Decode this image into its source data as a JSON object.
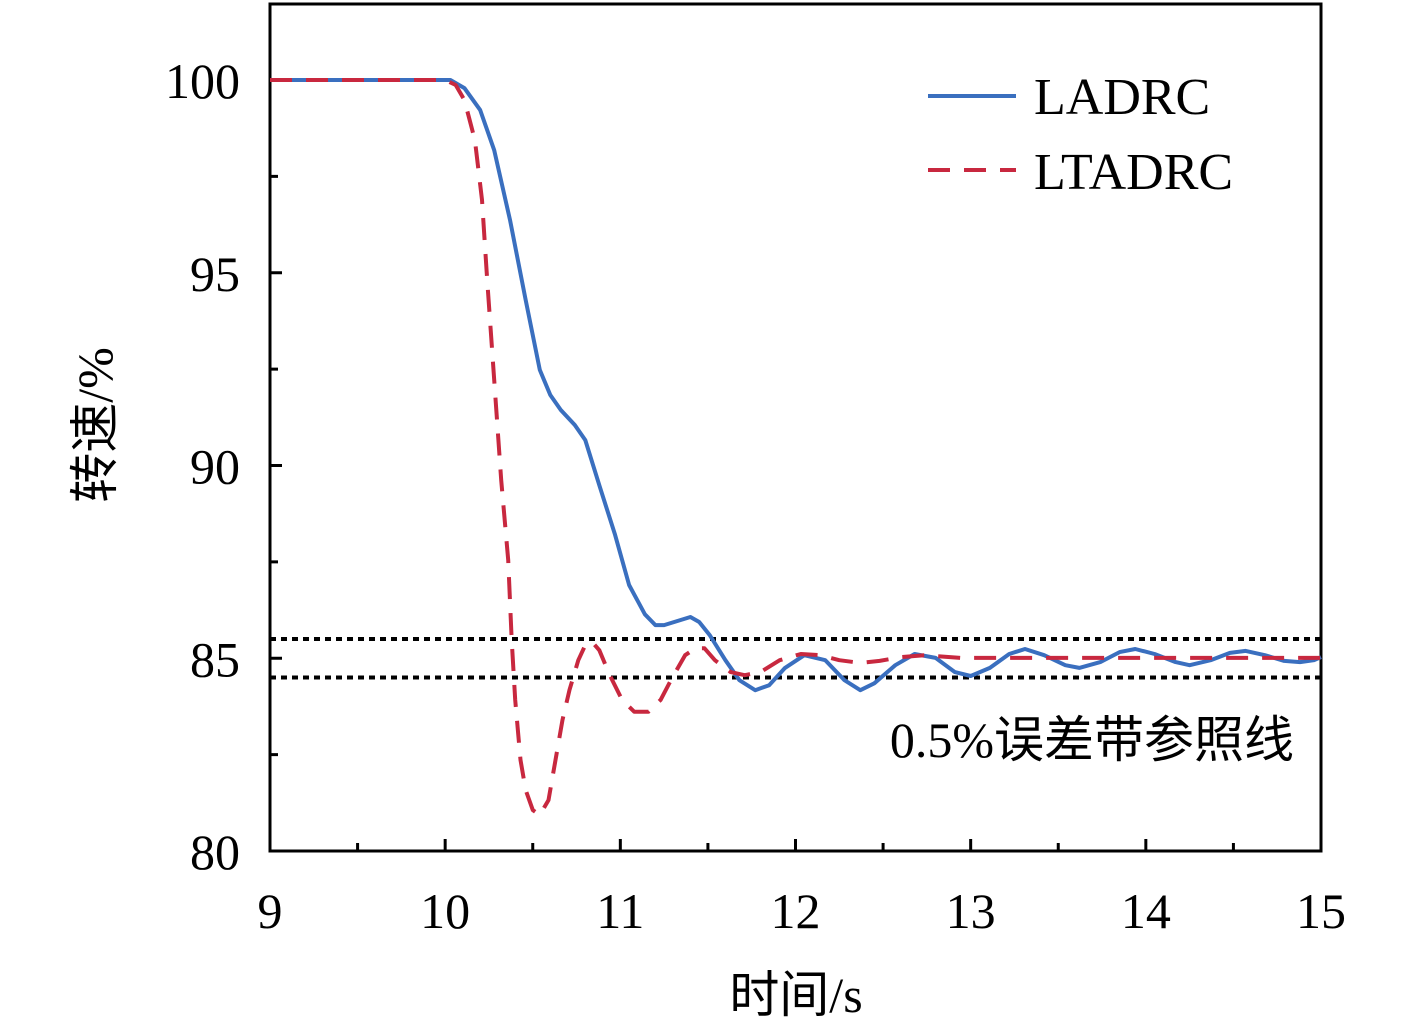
{
  "chart_data": {
    "type": "line",
    "title": "",
    "xlabel": "时间/s",
    "ylabel": "转速/%",
    "xlim": [
      9,
      15
    ],
    "ylim": [
      80,
      102
    ],
    "xticks": [
      9,
      10,
      11,
      12,
      13,
      14,
      15
    ],
    "yticks": [
      80,
      85,
      90,
      95,
      100
    ],
    "x_tick_labels": [
      "9",
      "10",
      "11",
      "12",
      "13",
      "14",
      "15"
    ],
    "y_tick_labels": [
      "80",
      "85",
      "90",
      "95",
      "100"
    ],
    "grid": false,
    "legend_position": "top-right",
    "series": [
      {
        "name": "LADRC",
        "color": "#3a6fbf",
        "style": "solid",
        "x": [
          9.0,
          10.03,
          10.11,
          10.2,
          10.28,
          10.37,
          10.46,
          10.54,
          10.6,
          10.66,
          10.74,
          10.8,
          10.88,
          10.97,
          11.05,
          11.14,
          11.2,
          11.25,
          11.4,
          11.45,
          11.51,
          11.6,
          11.68,
          11.77,
          11.85,
          11.94,
          12.05,
          12.17,
          12.28,
          12.37,
          12.45,
          12.57,
          12.68,
          12.8,
          12.91,
          13.0,
          13.11,
          13.22,
          13.31,
          13.42,
          13.54,
          13.62,
          13.74,
          13.85,
          13.94,
          14.05,
          14.17,
          14.25,
          14.37,
          14.48,
          14.57,
          14.68,
          14.79,
          14.88,
          14.96,
          15.0
        ],
        "y": [
          100,
          100,
          99.79,
          99.22,
          98.18,
          96.37,
          94.29,
          92.48,
          91.83,
          91.44,
          91.05,
          90.66,
          89.49,
          88.2,
          86.9,
          86.14,
          85.86,
          85.86,
          86.07,
          85.94,
          85.6,
          84.95,
          84.43,
          84.17,
          84.3,
          84.75,
          85.08,
          84.95,
          84.43,
          84.17,
          84.35,
          84.82,
          85.11,
          85.01,
          84.64,
          84.54,
          84.75,
          85.11,
          85.24,
          85.08,
          84.82,
          84.75,
          84.9,
          85.16,
          85.24,
          85.11,
          84.9,
          84.82,
          84.95,
          85.14,
          85.19,
          85.08,
          84.93,
          84.9,
          84.95,
          85.03
        ]
      },
      {
        "name": "LTADRC",
        "color": "#c8283f",
        "style": "dashed",
        "x": [
          9.0,
          10.0,
          10.06,
          10.11,
          10.17,
          10.21,
          10.24,
          10.28,
          10.32,
          10.36,
          10.38,
          10.4,
          10.43,
          10.46,
          10.5,
          10.54,
          10.59,
          10.63,
          10.67,
          10.71,
          10.76,
          10.8,
          10.84,
          10.88,
          10.94,
          11.01,
          11.08,
          11.16,
          11.23,
          11.29,
          11.37,
          11.43,
          11.48,
          11.54,
          11.63,
          11.71,
          11.8,
          11.91,
          12.03,
          12.14,
          12.25,
          12.37,
          12.48,
          12.6,
          12.74,
          12.94,
          13.17,
          15.0
        ],
        "y": [
          100,
          100,
          99.87,
          99.48,
          98.44,
          96.89,
          94.81,
          92.22,
          89.62,
          87.55,
          85.47,
          83.92,
          82.36,
          81.58,
          81.06,
          80.93,
          81.32,
          82.36,
          83.4,
          84.18,
          84.95,
          85.34,
          85.42,
          85.21,
          84.56,
          83.92,
          83.61,
          83.61,
          83.92,
          84.44,
          85.08,
          85.26,
          85.26,
          84.95,
          84.64,
          84.56,
          84.64,
          84.95,
          85.11,
          85.08,
          84.95,
          84.88,
          84.93,
          85.03,
          85.08,
          85.01,
          85.01,
          85.01
        ]
      }
    ],
    "reference_lines": {
      "values": [
        85.5,
        84.5
      ],
      "color": "#000000",
      "style": "dotted"
    },
    "annotations": [
      "0.5%误差带参照线"
    ]
  }
}
